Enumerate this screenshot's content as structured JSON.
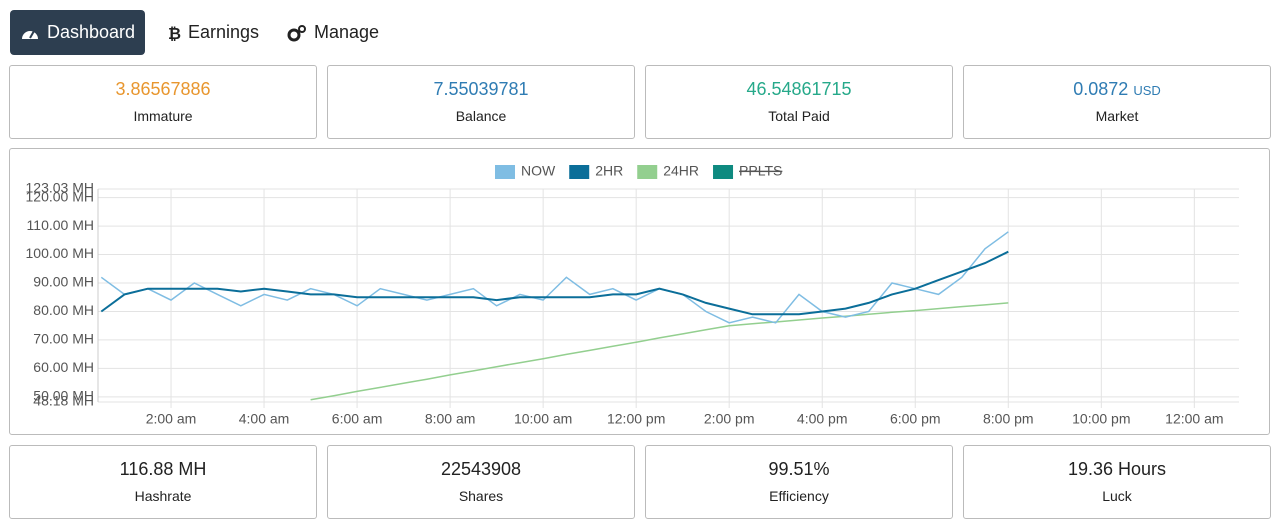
{
  "nav": {
    "tabs": [
      "Dashboard",
      "Earnings",
      "Manage"
    ],
    "active": 0
  },
  "stats": [
    {
      "value": "3.86567886",
      "label": "Immature",
      "color": "#e8962e"
    },
    {
      "value": "7.55039781",
      "label": "Balance",
      "color": "#2f7cb3"
    },
    {
      "value": "46.54861715",
      "label": "Total Paid",
      "color": "#26a98a"
    },
    {
      "value": "0.0872",
      "unit": "USD",
      "label": "Market",
      "color": "#2f7cb3"
    }
  ],
  "chart_data": {
    "type": "line",
    "x": [
      0.5,
      1,
      1.5,
      2,
      2.5,
      3,
      3.5,
      4,
      4.5,
      5,
      5.5,
      6,
      6.5,
      7,
      7.5,
      8,
      8.5,
      9,
      9.5,
      10,
      10.5,
      11,
      11.5,
      12,
      12.5,
      13,
      13.5,
      14,
      14.5,
      15,
      15.5,
      16,
      16.5,
      17,
      17.5,
      18,
      18.5,
      19,
      19.5,
      20
    ],
    "series": [
      {
        "name": "NOW",
        "color": "#7fbde3",
        "values": [
          92,
          86,
          88,
          84,
          90,
          86,
          82,
          86,
          84,
          88,
          86,
          82,
          88,
          86,
          84,
          86,
          88,
          82,
          86,
          84,
          92,
          86,
          88,
          84,
          88,
          86,
          80,
          76,
          78,
          76,
          86,
          80,
          78,
          80,
          90,
          88,
          86,
          92,
          102,
          108
        ]
      },
      {
        "name": "2HR",
        "color": "#0b6e99",
        "values": [
          80,
          86,
          88,
          88,
          88,
          88,
          87,
          88,
          87,
          86,
          86,
          85,
          85,
          85,
          85,
          85,
          85,
          84,
          85,
          85,
          85,
          85,
          86,
          86,
          88,
          86,
          83,
          81,
          79,
          79,
          79,
          80,
          81,
          83,
          86,
          88,
          91,
          94,
          97,
          101
        ]
      },
      {
        "name": "24HR",
        "color": "#93cf8f",
        "values": [
          null,
          null,
          null,
          null,
          null,
          null,
          null,
          null,
          null,
          49,
          50.4,
          51.9,
          53.3,
          54.8,
          56.2,
          57.7,
          59.1,
          60.6,
          62,
          63.4,
          64.9,
          66.3,
          67.8,
          69.2,
          70.7,
          72.1,
          73.6,
          75,
          75.7,
          76.3,
          77,
          77.7,
          78.3,
          79,
          79.7,
          80.3,
          81,
          81.7,
          82.3,
          83
        ]
      },
      {
        "name": "PPLTS",
        "color": "#0e8a80",
        "hidden": true
      }
    ],
    "xlim": [
      0.43,
      24.96
    ],
    "xticks": [
      {
        "value": 2,
        "label": "2:00 am"
      },
      {
        "value": 4,
        "label": "4:00 am"
      },
      {
        "value": 6,
        "label": "6:00 am"
      },
      {
        "value": 8,
        "label": "8:00 am"
      },
      {
        "value": 10,
        "label": "10:00 am"
      },
      {
        "value": 12,
        "label": "12:00 pm"
      },
      {
        "value": 14,
        "label": "2:00 pm"
      },
      {
        "value": 16,
        "label": "4:00 pm"
      },
      {
        "value": 18,
        "label": "6:00 pm"
      },
      {
        "value": 20,
        "label": "8:00 pm"
      },
      {
        "value": 22,
        "label": "10:00 pm"
      },
      {
        "value": 24,
        "label": "12:00 am"
      }
    ],
    "ylim": [
      48.18,
      123.03
    ],
    "yticks": [
      {
        "value": 48.18,
        "label": "48.18 MH"
      },
      {
        "value": 50,
        "label": "50.00 MH"
      },
      {
        "value": 60,
        "label": "60.00 MH"
      },
      {
        "value": 70,
        "label": "70.00 MH"
      },
      {
        "value": 80,
        "label": "80.00 MH"
      },
      {
        "value": 90,
        "label": "90.00 MH"
      },
      {
        "value": 100,
        "label": "100.00 MH"
      },
      {
        "value": 110,
        "label": "110.00 MH"
      },
      {
        "value": 120,
        "label": "120.00 MH"
      },
      {
        "value": 123.03,
        "label": "123.03 MH"
      }
    ],
    "grid": true,
    "legend": "top"
  },
  "bottom_stats": [
    {
      "value": "116.88 MH",
      "label": "Hashrate"
    },
    {
      "value": "22543908",
      "label": "Shares"
    },
    {
      "value": "99.51%",
      "label": "Efficiency"
    },
    {
      "value": "19.36 Hours",
      "label": "Luck"
    }
  ]
}
